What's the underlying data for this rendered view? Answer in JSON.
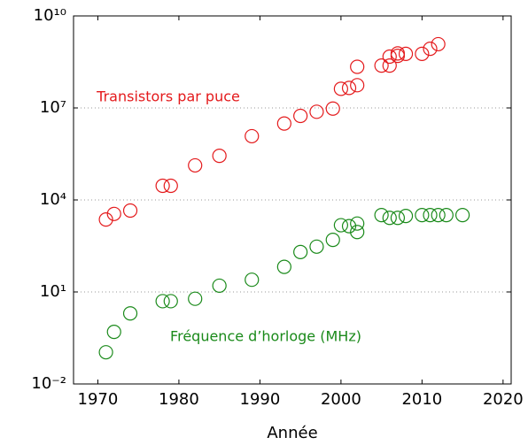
{
  "chart_data": {
    "type": "scatter",
    "xlabel": "Année",
    "xlim": [
      1967,
      2021
    ],
    "xticks": [
      1970,
      1980,
      1990,
      2000,
      2010,
      2020
    ],
    "ylim": [
      0.01,
      10000000000
    ],
    "yticks": [
      {
        "value": 0.01,
        "label": "10⁻²"
      },
      {
        "value": 10,
        "label": "10¹"
      },
      {
        "value": 10000,
        "label": "10⁴"
      },
      {
        "value": 10000000,
        "label": "10⁷"
      },
      {
        "value": 10000000000,
        "label": "10¹⁰"
      }
    ],
    "log_y": true,
    "grid": true,
    "series": [
      {
        "name": "Transistors par puce",
        "color": "#e41a1c",
        "x": [
          1971,
          1972,
          1974,
          1978,
          1979,
          1982,
          1985,
          1989,
          1993,
          1995,
          1997,
          1999,
          2000,
          2001,
          2002,
          2002,
          2005,
          2006,
          2006,
          2007,
          2007,
          2008,
          2010,
          2011,
          2012
        ],
        "values": [
          2300,
          3500,
          4500,
          29000,
          29000,
          134000,
          275000,
          1200000,
          3100000,
          5500000,
          7500000,
          9500000,
          42000000,
          45000000,
          55000000,
          220000000,
          240000000,
          240000000,
          470000000,
          600000000,
          500000000,
          580000000,
          580000000,
          850000000,
          1200000000
        ]
      },
      {
        "name": "Fréquence d’horloge (MHz)",
        "color": "#1a8a1a",
        "x": [
          1971,
          1972,
          1974,
          1978,
          1979,
          1982,
          1985,
          1989,
          1993,
          1995,
          1997,
          1999,
          2000,
          2001,
          2002,
          2002,
          2005,
          2006,
          2007,
          2008,
          2010,
          2011,
          2012,
          2013,
          2015
        ],
        "values": [
          0.108,
          0.5,
          2,
          5,
          5,
          6,
          16,
          25,
          66,
          200,
          300,
          500,
          1500,
          1400,
          1700,
          900,
          3200,
          2600,
          2600,
          3000,
          3200,
          3200,
          3200,
          3200,
          3200
        ]
      }
    ]
  }
}
